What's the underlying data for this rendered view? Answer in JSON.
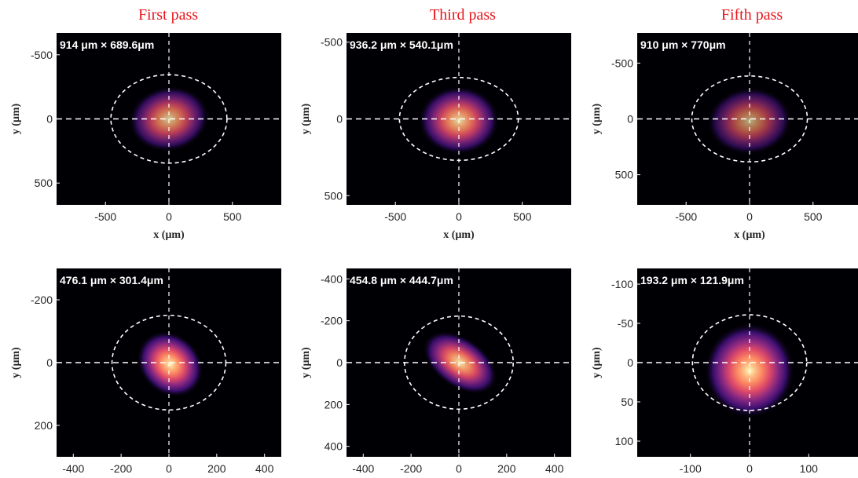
{
  "column_titles": [
    "First pass",
    "Third pass",
    "Fifth pass"
  ],
  "colors": {
    "title": "#e8161c",
    "background": "#000004",
    "overlay": "#ffffff",
    "axis_text": "#262626",
    "colormap": "magma"
  },
  "chart_data": [
    {
      "type": "heatmap",
      "row": 0,
      "col": 0,
      "size_label": "914 μm × 689.6μm",
      "xlabel": "x (μm)",
      "ylabel": "y (μm)",
      "xlim": [
        -885,
        885
      ],
      "ylim": [
        -670,
        670
      ],
      "xticks": [
        -500,
        0,
        500
      ],
      "yticks": [
        -500,
        0,
        500
      ],
      "ellipse": {
        "cx": 0,
        "cy": 0,
        "width": 914,
        "height": 689.6
      },
      "crosshair": [
        0,
        0
      ],
      "beam": {
        "cx": 0,
        "cy": 0,
        "sx": 200,
        "sy": 160,
        "angle": -10,
        "peak": 0.82
      }
    },
    {
      "type": "heatmap",
      "row": 0,
      "col": 1,
      "size_label": "936.2 μm × 540.1μm",
      "xlabel": "x (μm)",
      "ylabel": "y (μm)",
      "xlim": [
        -885,
        885
      ],
      "ylim": [
        -560,
        560
      ],
      "xticks": [
        -500,
        0,
        500
      ],
      "yticks": [
        -500,
        0,
        500
      ],
      "ellipse": {
        "cx": 0,
        "cy": 0,
        "width": 936.2,
        "height": 540.1
      },
      "crosshair": [
        0,
        0
      ],
      "beam": {
        "cx": 0,
        "cy": 10,
        "sx": 200,
        "sy": 140,
        "angle": 0,
        "peak": 0.9
      }
    },
    {
      "type": "heatmap",
      "row": 0,
      "col": 2,
      "size_label": "910 μm × 770μm",
      "xlabel": "x (μm)",
      "ylabel": "y (μm)",
      "xlim": [
        -885,
        885
      ],
      "ylim": [
        -770,
        770
      ],
      "xticks": [
        -500,
        0,
        500
      ],
      "yticks": [
        -500,
        0,
        500
      ],
      "ellipse": {
        "cx": 0,
        "cy": 0,
        "width": 910,
        "height": 770
      },
      "crosshair": [
        0,
        0
      ],
      "beam": {
        "cx": 0,
        "cy": 20,
        "sx": 210,
        "sy": 190,
        "angle": -5,
        "peak": 0.7
      }
    },
    {
      "type": "heatmap",
      "row": 1,
      "col": 0,
      "size_label": "476.1 μm × 301.4μm",
      "xlabel": "x (μm)",
      "ylabel": "y (μm)",
      "xlim": [
        -470,
        470
      ],
      "ylim": [
        -300,
        300
      ],
      "xticks": [
        -400,
        -200,
        0,
        200,
        400
      ],
      "yticks": [
        -200,
        0,
        200
      ],
      "ellipse": {
        "cx": 0,
        "cy": 0,
        "width": 476.1,
        "height": 301.4
      },
      "crosshair": [
        0,
        0
      ],
      "beam": {
        "cx": 5,
        "cy": 5,
        "sx": 95,
        "sy": 60,
        "angle": 45,
        "peak": 1.0
      }
    },
    {
      "type": "heatmap",
      "row": 1,
      "col": 1,
      "size_label": "454.8 μm × 444.7μm",
      "xlabel": "x (μm)",
      "ylabel": "y (μm)",
      "xlim": [
        -470,
        470
      ],
      "ylim": [
        -450,
        450
      ],
      "xticks": [
        -400,
        -200,
        0,
        200,
        400
      ],
      "yticks": [
        -400,
        -200,
        0,
        200,
        400
      ],
      "ellipse": {
        "cx": 0,
        "cy": 0,
        "width": 454.8,
        "height": 444.7
      },
      "crosshair": [
        0,
        0
      ],
      "beam": {
        "cx": 5,
        "cy": 0,
        "sx": 110,
        "sy": 75,
        "angle": 35,
        "peak": 0.95
      }
    },
    {
      "type": "heatmap",
      "row": 1,
      "col": 2,
      "size_label": "193.2 μm × 121.9μm",
      "xlabel": "x (μm)",
      "ylabel": "y (μm)",
      "xlim": [
        -190,
        190
      ],
      "ylim": [
        -120,
        120
      ],
      "xticks": [
        -100,
        0,
        100
      ],
      "yticks": [
        -100,
        -50,
        0,
        50,
        100
      ],
      "ellipse": {
        "cx": 0,
        "cy": 0,
        "width": 193.2,
        "height": 121.9
      },
      "crosshair": [
        0,
        0
      ],
      "beam": {
        "cx": 0,
        "cy": 10,
        "sx": 48,
        "sy": 38,
        "angle": 0,
        "peak": 1.0
      }
    }
  ]
}
